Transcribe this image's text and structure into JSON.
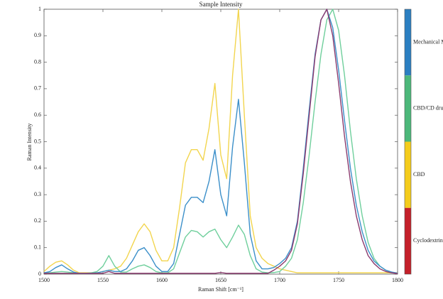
{
  "chart_data": {
    "type": "line",
    "title": "Sample Intensity",
    "x_label": "Raman Shift [cm⁻¹]",
    "y_label": "Raman Intensity",
    "x": [
      1500,
      1505,
      1510,
      1515,
      1520,
      1525,
      1530,
      1535,
      1540,
      1545,
      1550,
      1555,
      1560,
      1565,
      1570,
      1575,
      1580,
      1585,
      1590,
      1595,
      1600,
      1605,
      1610,
      1615,
      1620,
      1625,
      1630,
      1635,
      1640,
      1645,
      1650,
      1655,
      1660,
      1665,
      1670,
      1675,
      1680,
      1685,
      1690,
      1695,
      1700,
      1705,
      1710,
      1715,
      1720,
      1725,
      1730,
      1735,
      1740,
      1745,
      1750,
      1755,
      1760,
      1765,
      1770,
      1775,
      1780,
      1785,
      1790,
      1795,
      1800
    ],
    "series": [
      {
        "name": "Mechanical M",
        "color": "#3b8fc9",
        "legend_color": "#2b7fc1",
        "values": [
          0.005,
          0.01,
          0.025,
          0.035,
          0.02,
          0.008,
          0.003,
          0.003,
          0.003,
          0.005,
          0.01,
          0.015,
          0.01,
          0.01,
          0.02,
          0.05,
          0.09,
          0.1,
          0.07,
          0.03,
          0.01,
          0.01,
          0.04,
          0.15,
          0.26,
          0.29,
          0.29,
          0.27,
          0.35,
          0.47,
          0.3,
          0.22,
          0.48,
          0.66,
          0.42,
          0.15,
          0.05,
          0.02,
          0.02,
          0.025,
          0.04,
          0.06,
          0.1,
          0.2,
          0.4,
          0.62,
          0.83,
          0.96,
          1.0,
          0.93,
          0.77,
          0.58,
          0.4,
          0.26,
          0.16,
          0.09,
          0.05,
          0.03,
          0.015,
          0.008,
          0.004
        ]
      },
      {
        "name": "CBD/CD dru",
        "color": "#6fcf9c",
        "legend_color": "#4cb87a",
        "values": [
          0.005,
          0.005,
          0.008,
          0.01,
          0.008,
          0.005,
          0.003,
          0.003,
          0.005,
          0.01,
          0.03,
          0.07,
          0.03,
          0.008,
          0.008,
          0.02,
          0.03,
          0.035,
          0.025,
          0.01,
          0.005,
          0.005,
          0.02,
          0.08,
          0.14,
          0.165,
          0.16,
          0.14,
          0.16,
          0.17,
          0.13,
          0.1,
          0.14,
          0.185,
          0.15,
          0.07,
          0.02,
          0.008,
          0.005,
          0.006,
          0.01,
          0.03,
          0.06,
          0.13,
          0.27,
          0.45,
          0.65,
          0.83,
          0.96,
          1.0,
          0.92,
          0.75,
          0.54,
          0.36,
          0.22,
          0.12,
          0.06,
          0.03,
          0.015,
          0.007,
          0.003
        ]
      },
      {
        "name": "CBD",
        "color": "#f2d54e",
        "legend_color": "#f4cc1c",
        "values": [
          0.01,
          0.03,
          0.045,
          0.05,
          0.035,
          0.015,
          0.005,
          0.005,
          0.005,
          0.005,
          0.01,
          0.015,
          0.02,
          0.03,
          0.06,
          0.11,
          0.16,
          0.19,
          0.16,
          0.09,
          0.05,
          0.05,
          0.1,
          0.25,
          0.42,
          0.47,
          0.47,
          0.43,
          0.55,
          0.72,
          0.45,
          0.36,
          0.75,
          1.0,
          0.6,
          0.22,
          0.1,
          0.06,
          0.04,
          0.03,
          0.02,
          0.015,
          0.01,
          0.005,
          0.005,
          0.005,
          0.005,
          0.005,
          0.005,
          0.005,
          0.005,
          0.005,
          0.005,
          0.005,
          0.005,
          0.005,
          0.005,
          0.005,
          0.005,
          0.005,
          0.005
        ]
      },
      {
        "name": "Cyclodextrin",
        "color": "#8a3a6e",
        "legend_color": "#c4202a",
        "values": [
          0.003,
          0.003,
          0.003,
          0.003,
          0.003,
          0.003,
          0.003,
          0.003,
          0.003,
          0.003,
          0.003,
          0.01,
          0.003,
          0.003,
          0.003,
          0.003,
          0.003,
          0.003,
          0.003,
          0.003,
          0.003,
          0.003,
          0.003,
          0.003,
          0.003,
          0.003,
          0.003,
          0.003,
          0.003,
          0.003,
          0.006,
          0.003,
          0.003,
          0.003,
          0.003,
          0.003,
          0.003,
          0.003,
          0.003,
          0.015,
          0.03,
          0.05,
          0.09,
          0.19,
          0.38,
          0.6,
          0.82,
          0.96,
          1.0,
          0.9,
          0.72,
          0.52,
          0.35,
          0.22,
          0.13,
          0.07,
          0.04,
          0.02,
          0.01,
          0.005,
          0.002
        ]
      }
    ],
    "xlim": [
      1500,
      1800
    ],
    "xticks": [
      1500,
      1550,
      1600,
      1650,
      1700,
      1750,
      1800
    ],
    "ylim": [
      0,
      1
    ],
    "yticks": [
      0,
      0.1,
      0.2,
      0.3,
      0.4,
      0.5,
      0.6,
      0.7,
      0.8,
      0.9,
      1
    ],
    "legend": "colorbar-right"
  }
}
